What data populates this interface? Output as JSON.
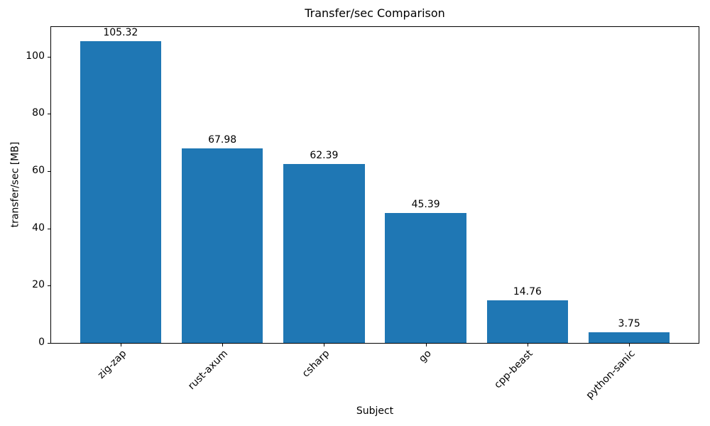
{
  "chart_data": {
    "type": "bar",
    "title": "Transfer/sec Comparison",
    "xlabel": "Subject",
    "ylabel": "transfer/sec [MB]",
    "categories": [
      "zig-zap",
      "rust-axum",
      "csharp",
      "go",
      "cpp-beast",
      "python-sanic"
    ],
    "values": [
      105.32,
      67.98,
      62.39,
      45.39,
      14.76,
      3.75
    ],
    "value_labels": [
      "105.32",
      "67.98",
      "62.39",
      "45.39",
      "14.76",
      "3.75"
    ],
    "yticks": [
      0,
      20,
      40,
      60,
      80,
      100
    ],
    "ylim": [
      0,
      110.6
    ],
    "bar_color": "#1f77b4",
    "axis_color": "#000000",
    "text_color": "#000000",
    "x_tick_rotation_deg": 45,
    "bar_width_fraction": 0.8,
    "grid": false,
    "legend": "none"
  }
}
